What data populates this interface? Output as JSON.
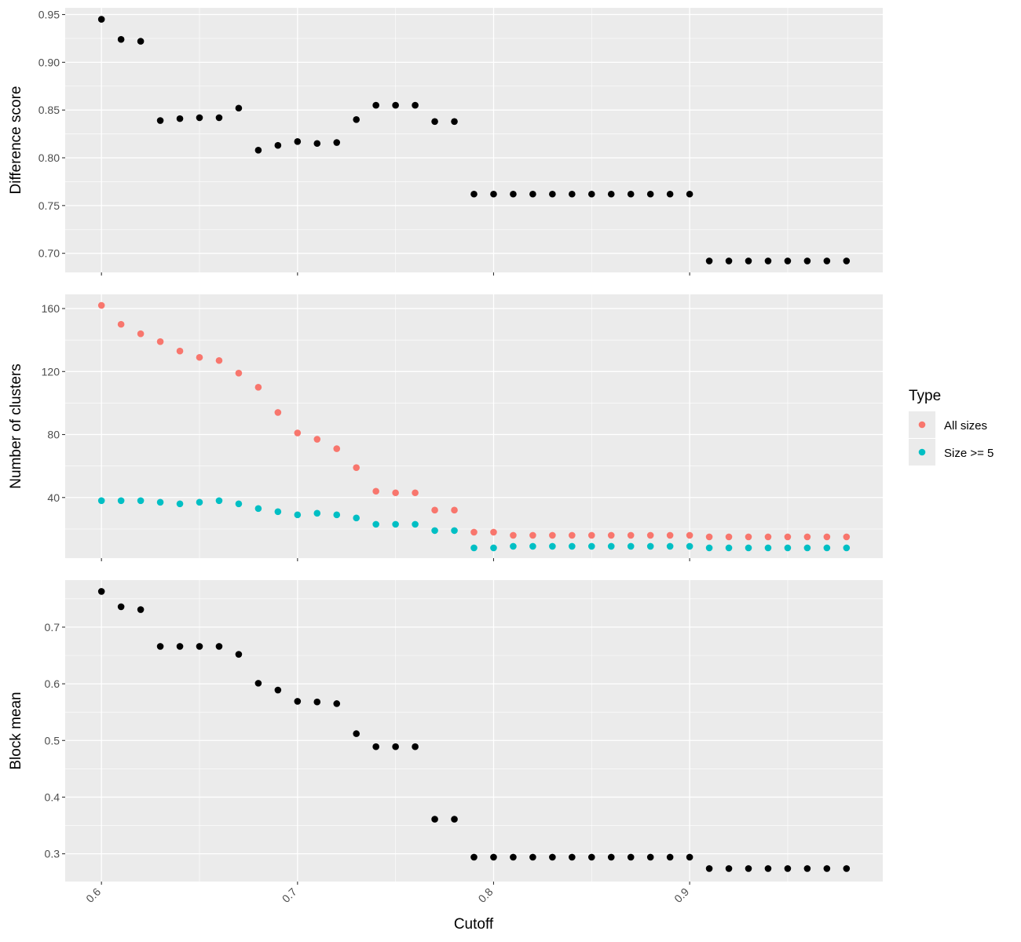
{
  "chart_data": {
    "type": "scatter",
    "x_title": "Cutoff",
    "x_ticks": [
      0.6,
      0.7,
      0.8,
      0.9
    ],
    "x_tick_labels": [
      "0.6",
      "0.7",
      "0.8",
      "0.9"
    ],
    "xlim": [
      0.5815,
      0.9985
    ],
    "x": [
      0.6,
      0.61,
      0.62,
      0.63,
      0.64,
      0.65,
      0.66,
      0.67,
      0.68,
      0.69,
      0.7,
      0.71,
      0.72,
      0.73,
      0.74,
      0.75,
      0.76,
      0.77,
      0.78,
      0.79,
      0.8,
      0.81,
      0.82,
      0.83,
      0.84,
      0.85,
      0.86,
      0.87,
      0.88,
      0.89,
      0.9,
      0.91,
      0.92,
      0.93,
      0.94,
      0.95,
      0.96,
      0.97,
      0.98
    ],
    "grid": true,
    "legend_placement": "right",
    "legend": {
      "title": "Type",
      "entries": [
        {
          "label": "All sizes",
          "color": "#F8766D"
        },
        {
          "label": "Size >= 5",
          "color": "#00BFC4"
        }
      ]
    },
    "panels": [
      {
        "ylabel": "Difference score",
        "ylim": [
          0.68,
          0.957
        ],
        "y_ticks": [
          0.7,
          0.75,
          0.8,
          0.85,
          0.9,
          0.95
        ],
        "y_tick_labels": [
          "0.70",
          "0.75",
          "0.80",
          "0.85",
          "0.90",
          "0.95"
        ],
        "series": [
          {
            "color": "#000000",
            "values": [
              0.945,
              0.924,
              0.922,
              0.839,
              0.841,
              0.842,
              0.842,
              0.852,
              0.808,
              0.813,
              0.817,
              0.815,
              0.816,
              0.84,
              0.855,
              0.855,
              0.855,
              0.838,
              0.838,
              0.762,
              0.762,
              0.762,
              0.762,
              0.762,
              0.762,
              0.762,
              0.762,
              0.762,
              0.762,
              0.762,
              0.762,
              0.692,
              0.692,
              0.692,
              0.692,
              0.692,
              0.692,
              0.692,
              0.692
            ]
          }
        ]
      },
      {
        "ylabel": "Number of clusters",
        "ylim": [
          1.5,
          169
        ],
        "y_ticks": [
          40,
          80,
          120,
          160
        ],
        "y_tick_labels": [
          "40",
          "80",
          "120",
          "160"
        ],
        "series": [
          {
            "name": "All sizes",
            "color": "#F8766D",
            "values": [
              162,
              150,
              144,
              139,
              133,
              129,
              127,
              119,
              110,
              94,
              81,
              77,
              71,
              59,
              44,
              43,
              43,
              32,
              32,
              18,
              18,
              16,
              16,
              16,
              16,
              16,
              16,
              16,
              16,
              16,
              16,
              15,
              15,
              15,
              15,
              15,
              15,
              15,
              15
            ]
          },
          {
            "name": "Size >= 5",
            "color": "#00BFC4",
            "values": [
              38,
              38,
              38,
              37,
              36,
              37,
              38,
              36,
              33,
              31,
              29,
              30,
              29,
              27,
              23,
              23,
              23,
              19,
              19,
              8,
              8,
              9,
              9,
              9,
              9,
              9,
              9,
              9,
              9,
              9,
              9,
              8,
              8,
              8,
              8,
              8,
              8,
              8,
              8
            ]
          }
        ]
      },
      {
        "ylabel": "Block mean",
        "ylim": [
          0.251,
          0.783
        ],
        "y_ticks": [
          0.3,
          0.4,
          0.5,
          0.6,
          0.7
        ],
        "y_tick_labels": [
          "0.3",
          "0.4",
          "0.5",
          "0.6",
          "0.7"
        ],
        "series": [
          {
            "color": "#000000",
            "values": [
              0.763,
              0.736,
              0.731,
              0.666,
              0.666,
              0.666,
              0.666,
              0.652,
              0.601,
              0.589,
              0.569,
              0.568,
              0.565,
              0.512,
              0.489,
              0.489,
              0.489,
              0.361,
              0.361,
              0.294,
              0.294,
              0.294,
              0.294,
              0.294,
              0.294,
              0.294,
              0.294,
              0.294,
              0.294,
              0.294,
              0.294,
              0.274,
              0.274,
              0.274,
              0.274,
              0.274,
              0.274,
              0.274,
              0.274
            ]
          }
        ]
      }
    ]
  }
}
